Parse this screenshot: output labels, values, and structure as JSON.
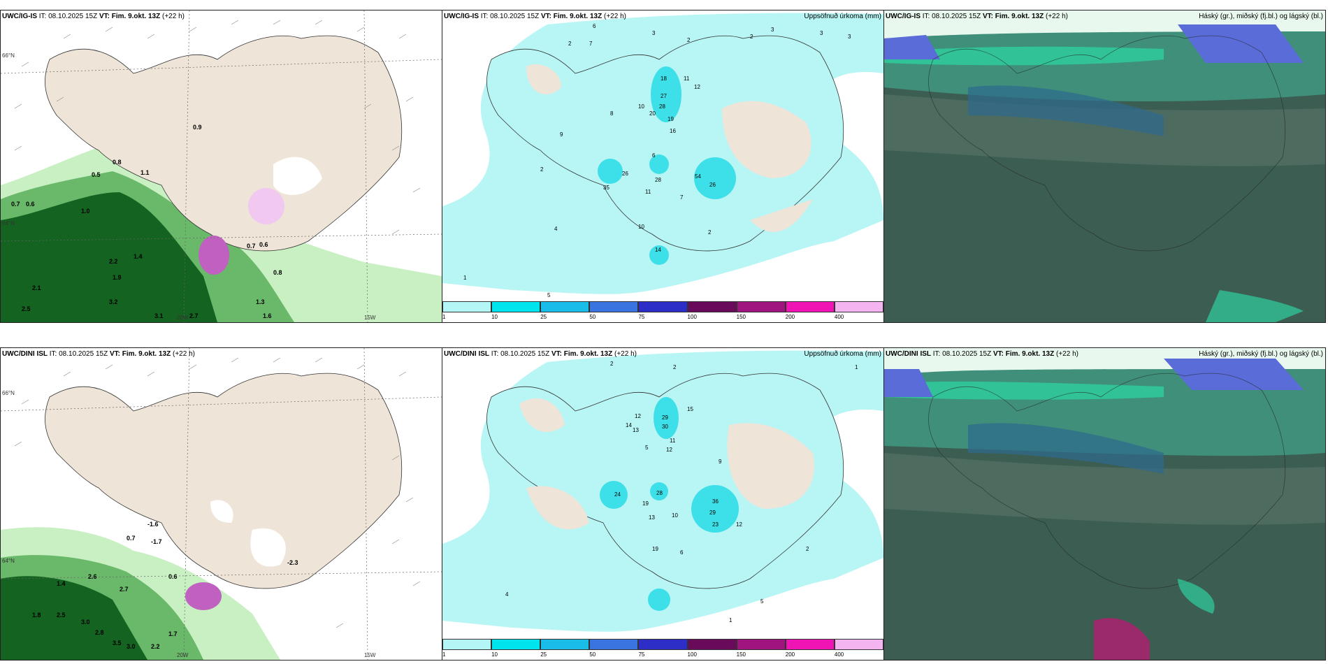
{
  "panels": [
    {
      "model": "UWC/IG-IS",
      "it": "IT: 08.10.2025 15Z",
      "vt": "VT: Fim. 9.okt. 13Z",
      "lead": "(+22 h)",
      "right": ""
    },
    {
      "model": "UWC/IG-IS",
      "it": "IT: 08.10.2025 15Z",
      "vt": "VT: Fim. 9.okt. 13Z",
      "lead": "(+22 h)",
      "right": "Uppsöfnuð úrkoma (mm)"
    },
    {
      "model": "UWC/IG-IS",
      "it": "IT: 08.10.2025 15Z",
      "vt": "VT: Fim. 9.okt. 13Z",
      "lead": "(+22 h)",
      "right": "Háský (gr.), miðský (fj.bl.) og lágský (bl.)"
    },
    {
      "model": "UWC/DINI ISL",
      "it": "IT: 08.10.2025 15Z",
      "vt": "VT: Fim. 9.okt. 13Z",
      "lead": "(+22 h)",
      "right": ""
    },
    {
      "model": "UWC/DINI ISL",
      "it": "IT: 08.10.2025 15Z",
      "vt": "VT: Fim. 9.okt. 13Z",
      "lead": "(+22 h)",
      "right": "Uppsöfnuð úrkoma (mm)"
    },
    {
      "model": "UWC/DINI ISL",
      "it": "IT: 08.10.2025 15Z",
      "vt": "VT: Fim. 9.okt. 13Z",
      "lead": "(+22 h)",
      "right": "Háský (gr.), miðský (fj.bl.) og lágský (bl.)"
    }
  ],
  "axis_labels": {
    "lat66": "66°N",
    "lat64": "64°N",
    "lon20": "20W",
    "lon15": "15W"
  },
  "colorbar": {
    "ticks": [
      "1",
      "10",
      "25",
      "50",
      "75",
      "100",
      "150",
      "200",
      "400"
    ],
    "colors": [
      "#b4f5f5",
      "#00e4ee",
      "#19bde8",
      "#3a74e0",
      "#2d2dc8",
      "#6a0a5a",
      "#a0147f",
      "#f014b4",
      "#f4b4f0"
    ]
  },
  "colors": {
    "land": "#efe4d8",
    "coast": "#333333",
    "precip_light": "#b8f5f5",
    "precip_mid": "#3de0e8",
    "wind_green_light": "#c9f0c2",
    "wind_green_mid": "#6ab86a",
    "wind_green_dark": "#0b5a1a",
    "snow_white": "#ffffff",
    "pink": "#c060c0",
    "cloud_dark": "#3c5e52",
    "cloud_mid": "#3f8f7a",
    "cloud_teal": "#2ecf9f",
    "cloud_blue": "#5a6cd8"
  },
  "precip_labels_ig": [
    "6",
    "3",
    "2",
    "2",
    "3",
    "3",
    "3",
    "2",
    "7",
    "18",
    "27",
    "28",
    "20",
    "19",
    "16",
    "11",
    "12",
    "10",
    "8",
    "9",
    "6",
    "2",
    "35",
    "26",
    "28",
    "11",
    "7",
    "54",
    "26",
    "10",
    "14",
    "2",
    "4",
    "5",
    "1"
  ],
  "precip_labels_dini": [
    "2",
    "2",
    "1",
    "12",
    "29",
    "30",
    "15",
    "14",
    "13",
    "11",
    "12",
    "5",
    "36",
    "29",
    "28",
    "24",
    "19",
    "13",
    "10",
    "23",
    "9",
    "12",
    "2",
    "19",
    "6",
    "4",
    "5",
    "1"
  ],
  "wind_labels_ig": [
    "0.9",
    "0.8",
    "0.5",
    "1.1",
    "0.7",
    "0.6",
    "1.0",
    "2.2",
    "1.4",
    "1.9",
    "2.1",
    "2.5",
    "3.2",
    "2.7",
    "3.1",
    "0.7",
    "0.6",
    "0.8",
    "1.3",
    "1.6"
  ],
  "wind_labels_dini": [
    "-1.6",
    "0.7",
    "-1.7",
    "-2.3",
    "2.6",
    "2.7",
    "1.8",
    "2.5",
    "3.0",
    "2.8",
    "3.5",
    "3.0",
    "2.2",
    "1.7",
    "1.4",
    "0.6"
  ]
}
